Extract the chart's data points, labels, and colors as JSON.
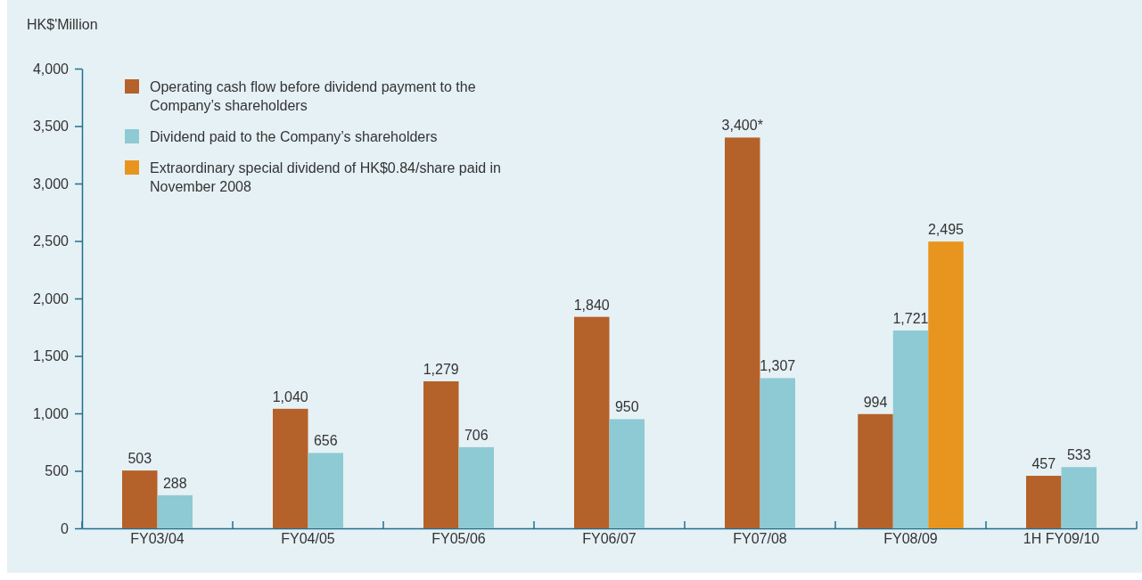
{
  "chart_data": {
    "type": "bar",
    "ylabel": "HK$'Million",
    "categories": [
      "FY03/04",
      "FY04/05",
      "FY05/06",
      "FY06/07",
      "FY07/08",
      "FY08/09",
      "1H FY09/10"
    ],
    "series": [
      {
        "name": "Operating cash flow before dividend payment to the Company’s shareholders",
        "color": "#b5612a",
        "values": [
          503,
          1040,
          1279,
          1840,
          3400,
          994,
          457
        ],
        "value_labels": [
          "503",
          "1,040",
          "1,279",
          "1,840",
          "3,400*",
          "994",
          "457"
        ]
      },
      {
        "name": "Dividend paid to the Company’s shareholders",
        "color": "#8ecad3",
        "values": [
          288,
          656,
          706,
          950,
          1307,
          1721,
          533
        ],
        "value_labels": [
          "288",
          "656",
          "706",
          "950",
          "1,307",
          "1,721",
          "533"
        ]
      },
      {
        "name": "Extraordinary special dividend of HK$0.84/share paid in November 2008",
        "color": "#e8951f",
        "values": [
          null,
          null,
          null,
          null,
          null,
          2495,
          null
        ],
        "value_labels": [
          null,
          null,
          null,
          null,
          null,
          "2,495",
          null
        ]
      }
    ],
    "ylim": [
      0,
      4000
    ],
    "yticks": [
      0,
      500,
      {
        "value": 1000,
        "label": "1,000"
      },
      {
        "value": 1500,
        "label": "1,500"
      },
      {
        "value": 2000,
        "label": "2,000"
      },
      {
        "value": 2500,
        "label": "2,500"
      },
      {
        "value": 3000,
        "label": "3,000"
      },
      {
        "value": 3500,
        "label": "3,500"
      },
      {
        "value": 4000,
        "label": "4,000"
      }
    ],
    "grid": false,
    "legend": "top left"
  }
}
